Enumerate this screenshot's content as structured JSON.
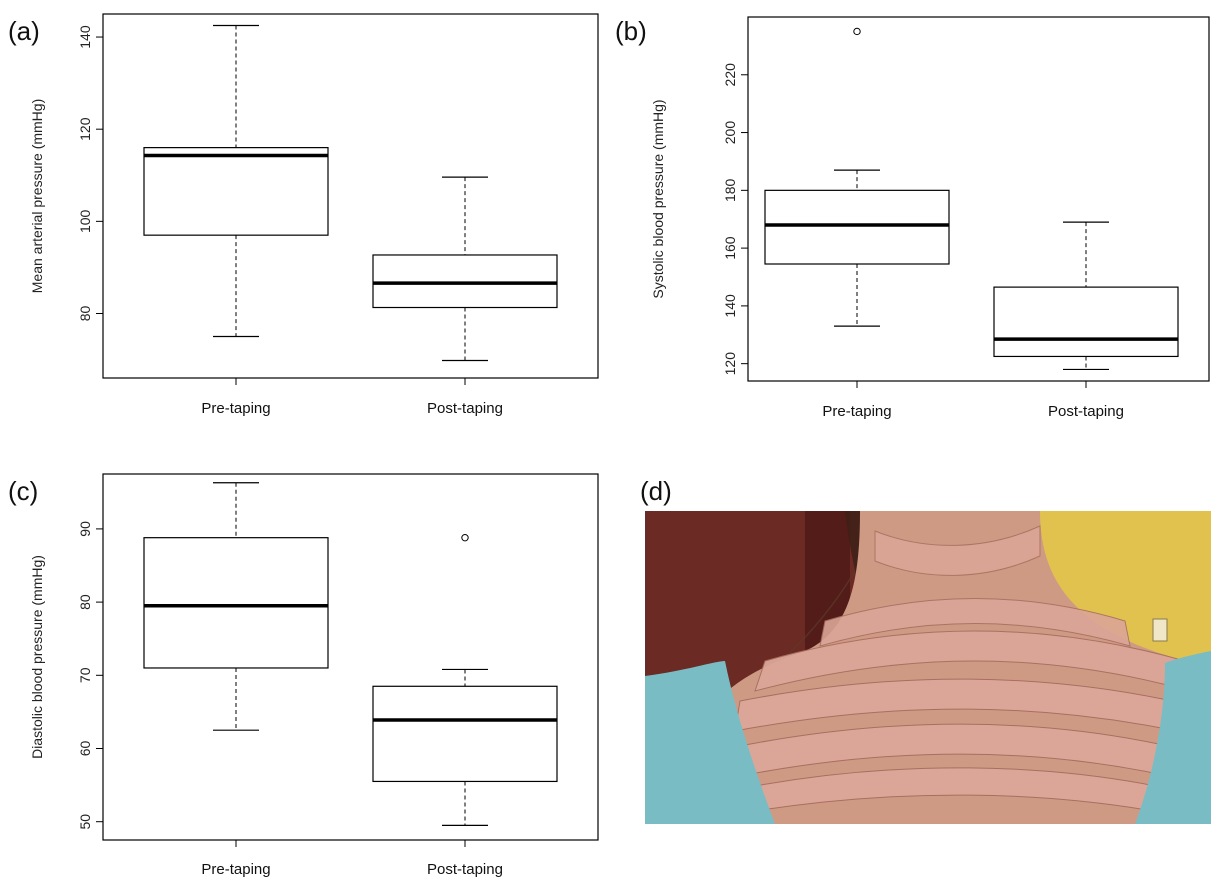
{
  "chart_data": [
    {
      "panel": "(a)",
      "type": "boxplot",
      "ylabel": "Mean arterial pressure (mmHg)",
      "ylim": [
        66,
        145
      ],
      "yticks": [
        80,
        100,
        120,
        140
      ],
      "categories": [
        "Pre-taping",
        "Post-taping"
      ],
      "boxes": [
        {
          "min": 75,
          "q1": 97,
          "median": 114.3,
          "q3": 116,
          "max": 142.5,
          "outliers": []
        },
        {
          "min": 69.8,
          "q1": 81.3,
          "median": 86.6,
          "q3": 92.7,
          "max": 109.6,
          "outliers": []
        }
      ]
    },
    {
      "panel": "(b)",
      "type": "boxplot",
      "ylabel": "Systolic blood pressure (mmHg)",
      "ylim": [
        114,
        240
      ],
      "yticks": [
        120,
        140,
        160,
        180,
        200,
        220
      ],
      "categories": [
        "Pre-taping",
        "Post-taping"
      ],
      "boxes": [
        {
          "min": 133,
          "q1": 154.5,
          "median": 168,
          "q3": 180,
          "max": 187,
          "outliers": [
            235
          ]
        },
        {
          "min": 118,
          "q1": 122.5,
          "median": 128.5,
          "q3": 146.5,
          "max": 169,
          "outliers": []
        }
      ]
    },
    {
      "panel": "(c)",
      "type": "boxplot",
      "ylabel": "Diastolic blood pressure (mmHg)",
      "ylim": [
        47.5,
        97.5
      ],
      "yticks": [
        50,
        60,
        70,
        80,
        90
      ],
      "categories": [
        "Pre-taping",
        "Post-taping"
      ],
      "boxes": [
        {
          "min": 62.5,
          "q1": 71,
          "median": 79.5,
          "q3": 88.8,
          "max": 96.3,
          "outliers": []
        },
        {
          "min": 49.5,
          "q1": 55.5,
          "median": 63.9,
          "q3": 68.5,
          "max": 70.8,
          "outliers": [
            88.8
          ]
        }
      ]
    }
  ],
  "photo_panel": {
    "panel": "(d)",
    "colors": {
      "wall_left": "#6b2a24",
      "wall_right": "#e2c24e",
      "skin": "#cf9a84",
      "tape": "#dba697",
      "shirt": "#79bcc3"
    }
  }
}
